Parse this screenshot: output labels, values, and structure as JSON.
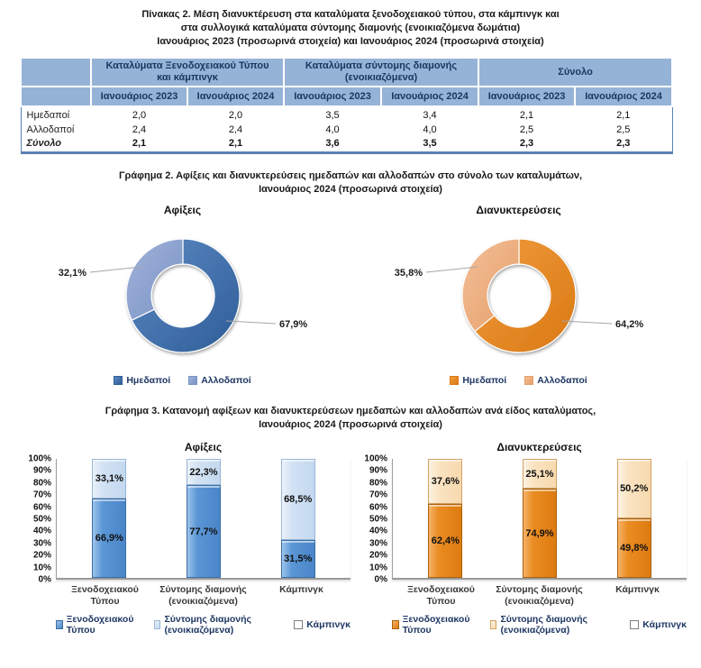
{
  "colors": {
    "table_header_bg": "#95b3d7",
    "table_header_text": "#17375e",
    "table_border": "#5a81b4",
    "axis_gray": "#9e9e9e",
    "leader_line": "#a6a6a6",
    "label_text": "#1a1a1a"
  },
  "table": {
    "title_lines": [
      "Πίνακας 2. Μέση διανυκτέρευση στα καταλύματα ξενοδοχειακού τύπου, στα κάμπινγκ και",
      "στα συλλογικά καταλύματα σύντομης διαμονής (ενοικιαζόμενα δωμάτια)",
      "Ιανουάριος 2023 (προσωρινά στοιχεία) και Ιανουάριος 2024  (προσωρινά στοιχεία)"
    ],
    "column_groups": [
      "Καταλύματα Ξενοδοχειακού Τύπου\nκαι κάμπινγκ",
      "Καταλύματα σύντομης διαμονής\n(ενοικιαζόμενα)",
      "Σύνολο"
    ],
    "year_headers": [
      "Ιανουάριος 2023",
      "Ιανουάριος 2024",
      "Ιανουάριος 2023",
      "Ιανουάριος 2024",
      "Ιανουάριος 2023",
      "Ιανουάριος 2024"
    ],
    "rows": [
      {
        "label": "Ημεδαποί",
        "values": [
          "2,0",
          "2,0",
          "3,5",
          "3,4",
          "2,1",
          "2,1"
        ],
        "total": false
      },
      {
        "label": "Αλλοδαποί",
        "values": [
          "2,4",
          "2,4",
          "4,0",
          "4,0",
          "2,5",
          "2,5"
        ],
        "total": false
      },
      {
        "label": "Σύνολο",
        "values": [
          "2,1",
          "2,1",
          "3,6",
          "3,5",
          "2,3",
          "2,3"
        ],
        "total": true
      }
    ]
  },
  "graph2": {
    "title_lines": [
      "Γράφημα 2. Αφίξεις και διανυκτερεύσεις ημεδαπών και αλλοδαπών στο σύνολο των καταλυμάτων,",
      "Ιανουάριος 2024  (προσωρινά στοιχεία)"
    ]
  },
  "graph3": {
    "title_lines": [
      "Γράφημα 3. Κατανομή αφίξεων και διανυκτερεύσεων ημεδαπών και αλλοδαπών ανά είδος καταλύματος,",
      "Ιανουάριος 2024 (προσωρινά στοιχεία)"
    ]
  },
  "chart_data": [
    {
      "id": "arrivals-donut",
      "type": "pie",
      "subtype": "donut",
      "title": "Αφίξεις",
      "categories": [
        "Ημεδαποί",
        "Αλλοδαποί"
      ],
      "values": [
        67.9,
        32.1
      ],
      "labels": [
        "67,9%",
        "32,1%"
      ],
      "label_sides": [
        "right",
        "left"
      ],
      "slice_colors": [
        {
          "light": "#5d89c2",
          "dark": "#2e5d98"
        },
        {
          "light": "#9fb2d9",
          "dark": "#7b93c4"
        }
      ],
      "legend_position": "bottom"
    },
    {
      "id": "nights-donut",
      "type": "pie",
      "subtype": "donut",
      "title": "Διανυκτερεύσεις",
      "categories": [
        "Ημεδαποί",
        "Αλλοδαποί"
      ],
      "values": [
        64.2,
        35.8
      ],
      "labels": [
        "64,2%",
        "35,8%"
      ],
      "label_sides": [
        "right",
        "left"
      ],
      "slice_colors": [
        {
          "light": "#f19c3f",
          "dark": "#d97812"
        },
        {
          "light": "#f3bf98",
          "dark": "#e69f68"
        }
      ],
      "legend_position": "bottom"
    },
    {
      "id": "arrivals-stacked-bar",
      "type": "bar",
      "subtype": "stacked-100",
      "title": "Αφίξεις",
      "categories": [
        "Ξενοδοχειακού\nΤύπου",
        "Σύντομης διαμονής\n(ενοικιαζόμενα)",
        "Κάμπινγκ"
      ],
      "series": [
        {
          "name": "Ημεδαποί",
          "values": [
            66.9,
            77.7,
            31.5
          ],
          "labels": [
            "66,9%",
            "77,7%",
            "31,5%"
          ],
          "fill": [
            "#9cc3ec",
            "#5b97d6",
            "#4a86c8"
          ],
          "border": "#3b6ea5"
        },
        {
          "name": "Αλλοδαποί",
          "values": [
            33.1,
            22.3,
            68.5
          ],
          "labels": [
            "33,1%",
            "22,3%",
            "68,5%"
          ],
          "fill": [
            "#eaf1fa",
            "#d3e2f4",
            "#c3d8ef"
          ],
          "border": "#9ab6d6"
        }
      ],
      "ylim": [
        0,
        100
      ],
      "yticks": [
        "0%",
        "10%",
        "20%",
        "30%",
        "40%",
        "50%",
        "60%",
        "70%",
        "80%",
        "90%",
        "100%"
      ],
      "grid": false,
      "legend_position": "bottom"
    },
    {
      "id": "nights-stacked-bar",
      "type": "bar",
      "subtype": "stacked-100",
      "title": "Διανυκτερεύσεις",
      "categories": [
        "Ξενοδοχειακού\nΤύπου",
        "Σύντομης διαμονής\n(ενοικιαζόμενα)",
        "Κάμπινγκ"
      ],
      "series": [
        {
          "name": "Ημεδαποί",
          "values": [
            62.4,
            74.9,
            49.8
          ],
          "labels": [
            "62,4%",
            "74,9%",
            "49,8%"
          ],
          "fill": [
            "#f6b269",
            "#ea8c22",
            "#dd7b10"
          ],
          "border": "#a8610d"
        },
        {
          "name": "Αλλοδαποί",
          "values": [
            37.6,
            25.1,
            50.2
          ],
          "labels": [
            "37,6%",
            "25,1%",
            "50,2%"
          ],
          "fill": [
            "#fdf3e3",
            "#fae3c2",
            "#f7d9ae"
          ],
          "border": "#d2a267"
        }
      ],
      "ylim": [
        0,
        100
      ],
      "yticks": [
        "0%",
        "10%",
        "20%",
        "30%",
        "40%",
        "50%",
        "60%",
        "70%",
        "80%",
        "90%",
        "100%"
      ],
      "grid": false,
      "legend_position": "bottom"
    }
  ]
}
